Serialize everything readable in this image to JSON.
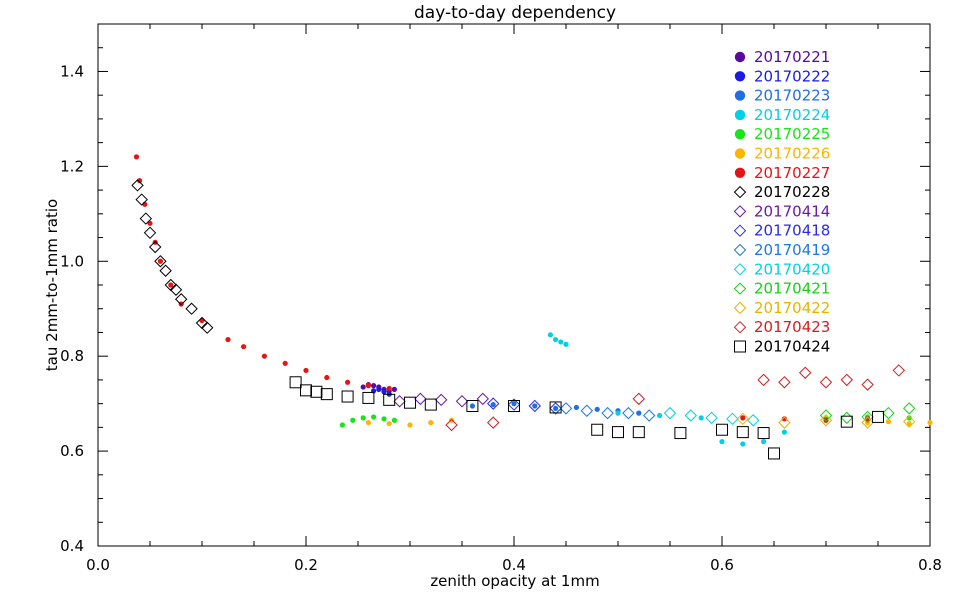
{
  "chart_data": {
    "type": "scatter",
    "title": "day-to-day dependency",
    "xlabel": "zenith opacity at 1mm",
    "ylabel": "tau 2mm-to-1mm ratio",
    "xlim": [
      0.0,
      0.8
    ],
    "ylim": [
      0.4,
      1.5
    ],
    "x_ticks": [
      "0.0",
      "0.2",
      "0.4",
      "0.6",
      "0.8"
    ],
    "y_ticks": [
      "0.4",
      "0.6",
      "0.8",
      "1.0",
      "1.2",
      "1.4"
    ],
    "grid": false,
    "legend_position": "top-right",
    "series": [
      {
        "name": "20170221",
        "color": "#5a0a9c",
        "marker": "filled-circle",
        "x": [
          0.255,
          0.26,
          0.265,
          0.27,
          0.275,
          0.28,
          0.285
        ],
        "y": [
          0.735,
          0.74,
          0.738,
          0.735,
          0.73,
          0.727,
          0.73
        ]
      },
      {
        "name": "20170222",
        "color": "#1a1ae6",
        "marker": "filled-circle",
        "x": [
          0.265,
          0.27,
          0.275,
          0.28
        ],
        "y": [
          0.727,
          0.73,
          0.725,
          0.72
        ]
      },
      {
        "name": "20170223",
        "color": "#1e6ee6",
        "marker": "filled-circle",
        "x": [
          0.36,
          0.38,
          0.4,
          0.42,
          0.44,
          0.46,
          0.48,
          0.5,
          0.52
        ],
        "y": [
          0.695,
          0.698,
          0.7,
          0.695,
          0.69,
          0.692,
          0.688,
          0.685,
          0.68
        ]
      },
      {
        "name": "20170224",
        "color": "#00d2e6",
        "marker": "filled-circle",
        "x": [
          0.435,
          0.44,
          0.445,
          0.45,
          0.5,
          0.54,
          0.58,
          0.6,
          0.62,
          0.64,
          0.66
        ],
        "y": [
          0.845,
          0.835,
          0.83,
          0.825,
          0.68,
          0.675,
          0.67,
          0.62,
          0.615,
          0.62,
          0.64
        ]
      },
      {
        "name": "20170225",
        "color": "#16e616",
        "marker": "filled-circle",
        "x": [
          0.235,
          0.245,
          0.255,
          0.265,
          0.275,
          0.285,
          0.7,
          0.74,
          0.78
        ],
        "y": [
          0.655,
          0.665,
          0.67,
          0.672,
          0.668,
          0.665,
          0.668,
          0.672,
          0.67
        ]
      },
      {
        "name": "20170226",
        "color": "#ffb400",
        "marker": "filled-circle",
        "x": [
          0.26,
          0.28,
          0.3,
          0.32,
          0.34,
          0.74,
          0.76,
          0.78,
          0.8
        ],
        "y": [
          0.66,
          0.658,
          0.655,
          0.66,
          0.665,
          0.66,
          0.662,
          0.658,
          0.66
        ]
      },
      {
        "name": "20170227",
        "color": "#e61414",
        "marker": "filled-circle",
        "x": [
          0.037,
          0.04,
          0.045,
          0.05,
          0.055,
          0.06,
          0.07,
          0.08,
          0.1,
          0.125,
          0.14,
          0.16,
          0.18,
          0.2,
          0.22,
          0.24,
          0.26,
          0.28,
          0.62,
          0.66,
          0.7,
          0.74
        ],
        "y": [
          1.22,
          1.17,
          1.12,
          1.08,
          1.04,
          1.0,
          0.95,
          0.91,
          0.875,
          0.835,
          0.82,
          0.8,
          0.785,
          0.77,
          0.755,
          0.745,
          0.738,
          0.732,
          0.67,
          0.668,
          0.665,
          0.668
        ]
      },
      {
        "name": "20170228",
        "color": "#000000",
        "marker": "open-diamond",
        "x": [
          0.038,
          0.042,
          0.046,
          0.05,
          0.055,
          0.06,
          0.065,
          0.07,
          0.075,
          0.08,
          0.09,
          0.1,
          0.105
        ],
        "y": [
          1.16,
          1.13,
          1.09,
          1.06,
          1.03,
          1.0,
          0.98,
          0.95,
          0.94,
          0.92,
          0.9,
          0.87,
          0.86
        ]
      },
      {
        "name": "20170414",
        "color": "#6a1aa8",
        "marker": "open-diamond",
        "x": [
          0.29,
          0.31,
          0.33,
          0.35,
          0.37
        ],
        "y": [
          0.705,
          0.71,
          0.708,
          0.705,
          0.71
        ]
      },
      {
        "name": "20170418",
        "color": "#2a2ae6",
        "marker": "open-diamond",
        "x": [
          0.38,
          0.4,
          0.42,
          0.44
        ],
        "y": [
          0.7,
          0.698,
          0.695,
          0.69
        ]
      },
      {
        "name": "20170419",
        "color": "#1e78e6",
        "marker": "open-diamond",
        "x": [
          0.45,
          0.47,
          0.49,
          0.51,
          0.53
        ],
        "y": [
          0.69,
          0.685,
          0.68,
          0.68,
          0.675
        ]
      },
      {
        "name": "20170420",
        "color": "#00d2e6",
        "marker": "open-diamond",
        "x": [
          0.55,
          0.57,
          0.59,
          0.61,
          0.63
        ],
        "y": [
          0.68,
          0.675,
          0.67,
          0.668,
          0.665
        ]
      },
      {
        "name": "20170421",
        "color": "#16d216",
        "marker": "open-diamond",
        "x": [
          0.7,
          0.72,
          0.74,
          0.76,
          0.78
        ],
        "y": [
          0.675,
          0.67,
          0.672,
          0.68,
          0.69
        ]
      },
      {
        "name": "20170422",
        "color": "#e6b400",
        "marker": "open-diamond",
        "x": [
          0.62,
          0.66,
          0.7,
          0.74,
          0.78
        ],
        "y": [
          0.668,
          0.66,
          0.665,
          0.66,
          0.662
        ]
      },
      {
        "name": "20170423",
        "color": "#d21e1e",
        "marker": "open-diamond",
        "x": [
          0.34,
          0.38,
          0.52,
          0.64,
          0.66,
          0.68,
          0.7,
          0.72,
          0.74,
          0.77
        ],
        "y": [
          0.655,
          0.66,
          0.71,
          0.75,
          0.745,
          0.765,
          0.745,
          0.75,
          0.74,
          0.77
        ]
      },
      {
        "name": "20170424",
        "color": "#000000",
        "marker": "open-square",
        "x": [
          0.19,
          0.2,
          0.21,
          0.22,
          0.24,
          0.26,
          0.28,
          0.3,
          0.32,
          0.36,
          0.4,
          0.44,
          0.48,
          0.5,
          0.52,
          0.56,
          0.6,
          0.62,
          0.64,
          0.65,
          0.72,
          0.75
        ],
        "y": [
          0.745,
          0.728,
          0.725,
          0.72,
          0.715,
          0.712,
          0.708,
          0.702,
          0.698,
          0.695,
          0.695,
          0.692,
          0.645,
          0.64,
          0.64,
          0.638,
          0.645,
          0.64,
          0.638,
          0.595,
          0.662,
          0.672
        ]
      }
    ]
  }
}
